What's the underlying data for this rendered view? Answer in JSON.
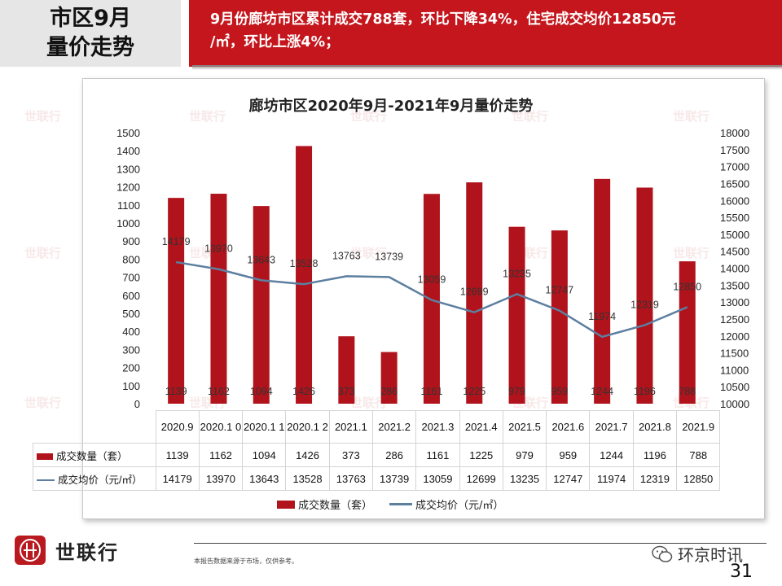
{
  "header": {
    "title_line1": "市区9月",
    "title_line2": "量价走势",
    "summary_line1": "9月份廊坊市区累计成交788套，环比下降34%，住宅成交均价12850元",
    "summary_line2": "/㎡，环比上涨4%；"
  },
  "chart_data": {
    "type": "bar",
    "title": "廊坊市区2020年9月-2021年9月量价走势",
    "categories": [
      "2020.9",
      "2020.10",
      "2020.11",
      "2020.12",
      "2021.1",
      "2021.2",
      "2021.3",
      "2021.4",
      "2021.5",
      "2021.6",
      "2021.7",
      "2021.8",
      "2021.9"
    ],
    "category_labels": [
      "2020.9",
      "2020.1 0",
      "2020.1 1",
      "2020.1 2",
      "2021.1",
      "2021.2",
      "2021.3",
      "2021.4",
      "2021.5",
      "2021.6",
      "2021.7",
      "2021.8",
      "2021.9"
    ],
    "series": [
      {
        "name": "成交数量（套）",
        "type": "bar",
        "axis": "left",
        "color": "#b0131b",
        "values": [
          1139,
          1162,
          1094,
          1426,
          373,
          286,
          1161,
          1225,
          979,
          959,
          1244,
          1196,
          788
        ]
      },
      {
        "name": "成交均价（元/㎡）",
        "type": "line",
        "axis": "right",
        "color": "#5d7fa0",
        "values": [
          14179,
          13970,
          13643,
          13528,
          13763,
          13739,
          13059,
          12699,
          13235,
          12747,
          11974,
          12319,
          12850
        ]
      }
    ],
    "y_left": {
      "min": 0,
      "max": 1500,
      "step": 100
    },
    "y_right": {
      "min": 10000,
      "max": 18000,
      "step": 500
    },
    "grid": false,
    "legend": "bottom",
    "data_table": true
  },
  "table_rows": {
    "bar_label": "成交数量（套）",
    "line_label": "成交均价（元/㎡）"
  },
  "legend": {
    "bar": "成交数量（套）",
    "line": "成交均价（元/㎡）"
  },
  "watermark": "世联行",
  "footer": {
    "brand": "世联行",
    "disclaimer": "本报告数据来源于市场，仅供参考。",
    "source": "环京时讯",
    "page": "31"
  }
}
